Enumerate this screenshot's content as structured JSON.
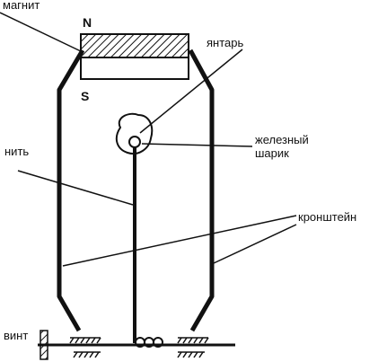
{
  "labels": {
    "magnet": "магнит",
    "north": "N",
    "south": "S",
    "amber": "янтарь",
    "iron_ball_line1": "железный",
    "iron_ball_line2": "шарик",
    "thread": "нить",
    "bracket": "кронштейн",
    "screw": "винт"
  }
}
